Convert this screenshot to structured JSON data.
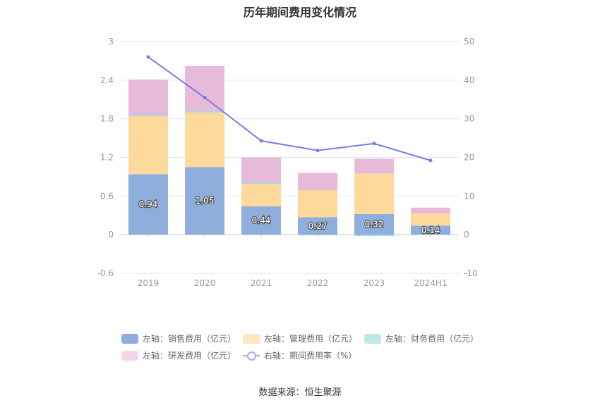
{
  "title": "历年期间费用变化情况",
  "source": "数据来源：恒生聚源",
  "colors": {
    "sales": "#8eaedc",
    "mgmt": "#fdd99b",
    "fin": "#99dce0",
    "rnd": "#e7bad9",
    "rate_line": "#7a7ae6",
    "grid": "#e6e6e6",
    "axis_text": "#999999"
  },
  "legend": [
    {
      "key": "sales",
      "label": "左轴：销售费用（亿元）"
    },
    {
      "key": "mgmt",
      "label": "左轴：管理费用（亿元）"
    },
    {
      "key": "fin",
      "label": "左轴：财务费用（亿元）"
    },
    {
      "key": "rnd",
      "label": "左轴：研发费用（亿元）"
    },
    {
      "key": "rate",
      "label": "右轴：期间费用率（%）"
    }
  ],
  "chart_data": {
    "type": "bar",
    "stacked": true,
    "categories": [
      "2019",
      "2020",
      "2021",
      "2022",
      "2023",
      "2024H1"
    ],
    "left_axis": {
      "min": -0.6,
      "max": 3,
      "ticks": [
        "-0.6",
        "0",
        "0.6",
        "1.2",
        "1.8",
        "2.4",
        "3"
      ]
    },
    "right_axis": {
      "min": -10,
      "max": 50,
      "ticks": [
        "-10",
        "0",
        "10",
        "20",
        "30",
        "40",
        "50"
      ]
    },
    "series": [
      {
        "key": "sales",
        "name": "左轴：销售费用（亿元）",
        "axis": "left",
        "values": [
          0.94,
          1.05,
          0.44,
          0.27,
          0.32,
          0.14
        ],
        "labels": [
          "0.94",
          "1.05",
          "0.44",
          "0.27",
          "0.32",
          "0.14"
        ]
      },
      {
        "key": "mgmt",
        "name": "左轴：管理费用（亿元）",
        "axis": "left",
        "values": [
          0.9,
          0.85,
          0.35,
          0.42,
          0.63,
          0.19
        ]
      },
      {
        "key": "fin",
        "name": "左轴：财务费用（亿元）",
        "axis": "left",
        "values": [
          0.02,
          0.02,
          0.02,
          -0.01,
          -0.02,
          0.0
        ]
      },
      {
        "key": "rnd",
        "name": "左轴：研发费用（亿元）",
        "axis": "left",
        "values": [
          0.55,
          0.7,
          0.39,
          0.27,
          0.23,
          0.09
        ]
      },
      {
        "key": "rate",
        "name": "右轴：期间费用率（%）",
        "axis": "right",
        "type": "line",
        "values": [
          46,
          35.5,
          24.3,
          21.8,
          23.6,
          19.2
        ]
      }
    ],
    "grid": true,
    "legend_position": "bottom"
  }
}
